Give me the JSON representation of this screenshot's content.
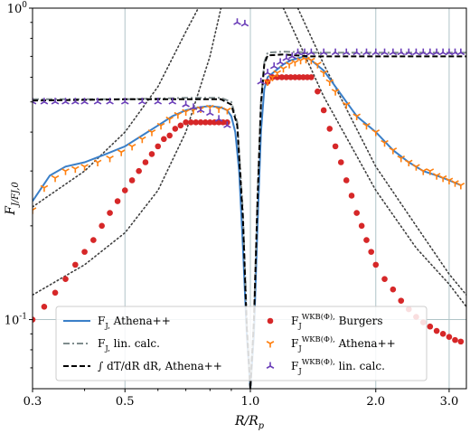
{
  "chart_data": {
    "type": "line",
    "title": "",
    "xlabel": "R/R_p",
    "ylabel": "F_J/F_J,0",
    "xscale": "log",
    "yscale": "log",
    "xlim": [
      0.3,
      3.3
    ],
    "ylim": [
      0.06,
      1.0
    ],
    "grid": true,
    "x_ticks": [
      0.3,
      0.5,
      1.0,
      2.0,
      3.0
    ],
    "x_tick_labels": [
      "0.3",
      "0.5",
      "1.0",
      "2.0",
      "3.0"
    ],
    "y_ticks": [
      0.1,
      1.0
    ],
    "y_tick_labels": [
      "10^-1",
      "10^0"
    ],
    "legend_position": "lower-center",
    "series": [
      {
        "name": "F_J, Athena++",
        "style": "solid",
        "color": "#3a7fc8",
        "x": [
          0.3,
          0.33,
          0.36,
          0.4,
          0.45,
          0.5,
          0.55,
          0.6,
          0.65,
          0.7,
          0.75,
          0.8,
          0.85,
          0.88,
          0.9,
          0.92,
          0.94,
          0.96,
          0.98,
          1.0,
          1.02,
          1.04,
          1.06,
          1.08,
          1.1,
          1.15,
          1.2,
          1.25,
          1.3,
          1.35,
          1.4,
          1.5,
          1.6,
          1.7,
          1.8,
          2.0,
          2.2,
          2.4,
          2.6,
          2.8,
          3.0,
          3.2
        ],
        "y": [
          0.24,
          0.29,
          0.31,
          0.32,
          0.34,
          0.36,
          0.39,
          0.42,
          0.45,
          0.47,
          0.48,
          0.485,
          0.48,
          0.47,
          0.45,
          0.4,
          0.3,
          0.17,
          0.09,
          0.06,
          0.09,
          0.2,
          0.4,
          0.55,
          0.6,
          0.63,
          0.66,
          0.68,
          0.69,
          0.7,
          0.68,
          0.63,
          0.56,
          0.5,
          0.45,
          0.4,
          0.35,
          0.32,
          0.3,
          0.29,
          0.28,
          0.27
        ]
      },
      {
        "name": "F_J, lin. calc.",
        "style": "dashdot",
        "color": "#7f8c8d",
        "x": [
          0.3,
          0.5,
          0.7,
          0.85,
          0.9,
          0.93,
          0.96,
          0.98,
          1.0,
          1.02,
          1.04,
          1.06,
          1.08,
          1.1,
          1.2,
          1.4,
          1.6,
          2.0,
          2.5,
          3.0,
          3.3
        ],
        "y": [
          0.51,
          0.51,
          0.515,
          0.515,
          0.5,
          0.43,
          0.22,
          0.1,
          0.06,
          0.1,
          0.25,
          0.5,
          0.67,
          0.72,
          0.725,
          0.72,
          0.72,
          0.72,
          0.72,
          0.72,
          0.72
        ]
      },
      {
        "name": "∫ dT/dR dR, Athena++",
        "style": "dashed",
        "color": "#000000",
        "x": [
          0.3,
          0.5,
          0.7,
          0.85,
          0.9,
          0.93,
          0.96,
          0.98,
          1.0,
          1.02,
          1.04,
          1.06,
          1.08,
          1.1,
          1.2,
          1.4,
          1.6,
          2.0,
          2.5,
          3.0,
          3.3
        ],
        "y": [
          0.505,
          0.51,
          0.51,
          0.51,
          0.49,
          0.42,
          0.21,
          0.095,
          0.06,
          0.1,
          0.24,
          0.49,
          0.66,
          0.705,
          0.71,
          0.7,
          0.7,
          0.7,
          0.7,
          0.7,
          0.7
        ]
      },
      {
        "name": "F_J^WKB(Φ), Burgers",
        "style": "circles",
        "color": "#d62728",
        "x": [
          0.3,
          0.32,
          0.34,
          0.36,
          0.38,
          0.4,
          0.42,
          0.44,
          0.46,
          0.48,
          0.5,
          0.52,
          0.54,
          0.56,
          0.58,
          0.6,
          0.62,
          0.64,
          0.66,
          0.68,
          0.7,
          0.72,
          0.74,
          0.76,
          0.78,
          0.8,
          0.82,
          0.84,
          0.86,
          0.88,
          1.1,
          1.13,
          1.16,
          1.19,
          1.22,
          1.25,
          1.28,
          1.31,
          1.34,
          1.37,
          1.4,
          1.45,
          1.5,
          1.55,
          1.6,
          1.65,
          1.7,
          1.75,
          1.8,
          1.85,
          1.9,
          1.95,
          2.0,
          2.1,
          2.2,
          2.3,
          2.4,
          2.5,
          2.6,
          2.7,
          2.8,
          2.9,
          3.0,
          3.1,
          3.2
        ],
        "y": [
          0.1,
          0.11,
          0.122,
          0.135,
          0.15,
          0.165,
          0.18,
          0.2,
          0.22,
          0.24,
          0.26,
          0.28,
          0.3,
          0.32,
          0.34,
          0.36,
          0.38,
          0.39,
          0.41,
          0.42,
          0.43,
          0.43,
          0.43,
          0.43,
          0.43,
          0.43,
          0.43,
          0.43,
          0.43,
          0.43,
          0.58,
          0.6,
          0.6,
          0.6,
          0.6,
          0.6,
          0.6,
          0.6,
          0.6,
          0.6,
          0.6,
          0.54,
          0.47,
          0.41,
          0.36,
          0.32,
          0.28,
          0.25,
          0.22,
          0.2,
          0.18,
          0.165,
          0.15,
          0.135,
          0.125,
          0.115,
          0.108,
          0.102,
          0.098,
          0.095,
          0.092,
          0.09,
          0.088,
          0.086,
          0.085
        ]
      },
      {
        "name": "F_J^WKB(Φ), Athena++",
        "style": "tri_down",
        "color": "#ff7f0e",
        "x": [
          0.3,
          0.32,
          0.34,
          0.36,
          0.38,
          0.4,
          0.43,
          0.46,
          0.49,
          0.52,
          0.55,
          0.58,
          0.61,
          0.64,
          0.67,
          0.7,
          0.73,
          0.76,
          0.8,
          0.84,
          0.88,
          1.1,
          1.13,
          1.16,
          1.2,
          1.24,
          1.28,
          1.32,
          1.36,
          1.4,
          1.45,
          1.5,
          1.55,
          1.6,
          1.7,
          1.8,
          1.9,
          2.0,
          2.1,
          2.2,
          2.3,
          2.4,
          2.5,
          2.6,
          2.7,
          2.8,
          2.9,
          3.0,
          3.1,
          3.2
        ],
        "y": [
          0.225,
          0.265,
          0.285,
          0.3,
          0.305,
          0.31,
          0.32,
          0.33,
          0.345,
          0.36,
          0.38,
          0.4,
          0.42,
          0.44,
          0.455,
          0.465,
          0.47,
          0.475,
          0.48,
          0.475,
          0.47,
          0.58,
          0.6,
          0.62,
          0.64,
          0.66,
          0.67,
          0.68,
          0.685,
          0.68,
          0.66,
          0.62,
          0.58,
          0.54,
          0.49,
          0.45,
          0.42,
          0.4,
          0.37,
          0.35,
          0.33,
          0.32,
          0.31,
          0.3,
          0.3,
          0.29,
          0.285,
          0.28,
          0.275,
          0.27
        ]
      },
      {
        "name": "F_J^WKB(Φ), lin. calc.",
        "style": "tri_up",
        "color": "#6a3db8",
        "x": [
          0.3,
          0.32,
          0.34,
          0.36,
          0.38,
          0.4,
          0.43,
          0.46,
          0.5,
          0.55,
          0.6,
          0.65,
          0.7,
          0.73,
          0.76,
          0.8,
          0.84,
          0.88,
          0.93,
          0.97,
          1.06,
          1.1,
          1.14,
          1.18,
          1.22,
          1.26,
          1.3,
          1.35,
          1.4,
          1.5,
          1.6,
          1.7,
          1.8,
          1.9,
          2.0,
          2.1,
          2.2,
          2.3,
          2.4,
          2.5,
          2.6,
          2.7,
          2.8,
          2.9,
          3.0,
          3.1,
          3.2
        ],
        "y": [
          0.5,
          0.5,
          0.5,
          0.5,
          0.5,
          0.5,
          0.5,
          0.5,
          0.5,
          0.5,
          0.5,
          0.5,
          0.49,
          0.48,
          0.47,
          0.46,
          0.44,
          0.42,
          0.9,
          0.89,
          0.58,
          0.62,
          0.65,
          0.67,
          0.69,
          0.7,
          0.72,
          0.72,
          0.72,
          0.72,
          0.72,
          0.72,
          0.72,
          0.72,
          0.72,
          0.72,
          0.72,
          0.72,
          0.72,
          0.72,
          0.72,
          0.72,
          0.72,
          0.72,
          0.72,
          0.72,
          0.72
        ]
      }
    ],
    "reference_curves": [
      {
        "style": "dotted",
        "color": "#404040",
        "x": [
          0.3,
          0.4,
          0.5,
          0.6,
          0.7,
          0.8,
          0.85
        ],
        "y": [
          0.12,
          0.15,
          0.19,
          0.26,
          0.4,
          0.7,
          1.0
        ]
      },
      {
        "style": "dotted",
        "color": "#404040",
        "x": [
          0.3,
          0.4,
          0.5,
          0.6,
          0.7,
          0.75
        ],
        "y": [
          0.23,
          0.3,
          0.4,
          0.56,
          0.84,
          1.0
        ]
      },
      {
        "style": "dotted",
        "color": "#404040",
        "x": [
          1.3,
          1.5,
          2.0,
          2.5,
          3.0,
          3.3
        ],
        "y": [
          1.0,
          0.66,
          0.31,
          0.2,
          0.14,
          0.12
        ]
      },
      {
        "style": "dotted",
        "color": "#404040",
        "x": [
          1.2,
          1.5,
          2.0,
          2.5,
          3.0,
          3.3
        ],
        "y": [
          1.0,
          0.52,
          0.26,
          0.17,
          0.13,
          0.11
        ]
      }
    ]
  }
}
